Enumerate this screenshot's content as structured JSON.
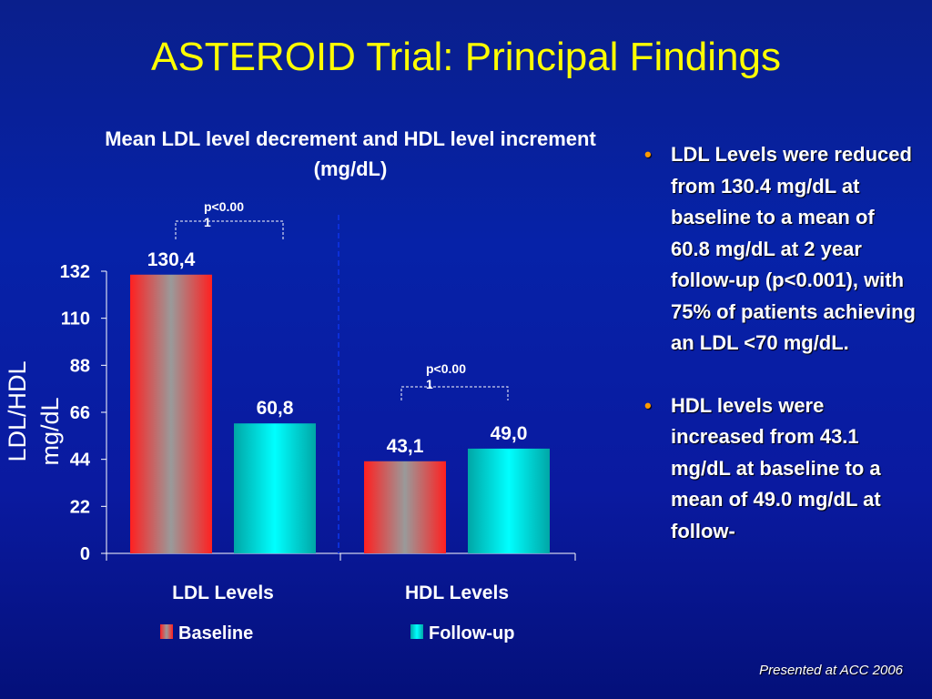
{
  "slide": {
    "title": "ASTEROID Trial: Principal Findings",
    "footer": "Presented at ACC 2006"
  },
  "bullets": [
    "LDL Levels were reduced from 130.4 mg/dL at baseline to a mean of 60.8 mg/dL at 2 year follow-up (p<0.001), with 75% of patients achieving an LDL <70 mg/dL.",
    "HDL levels were increased from 43.1 mg/dL at baseline to a mean of 49.0 mg/dL at follow-"
  ],
  "colors": {
    "background": "#0622a8",
    "title": "#ffff00",
    "baseline_edge": "#ff2020",
    "baseline_center": "#9a9a9a",
    "followup_edge": "#00a6a6",
    "followup_center": "#00ffff",
    "bullet": "#ff9900"
  },
  "chart_data": {
    "type": "bar",
    "title": "Mean LDL level decrement and HDL level increment",
    "subtitle": "(mg/dL)",
    "ylabel": "LDL/HDL mg/dL",
    "xlabel": "",
    "ylim": [
      0,
      132
    ],
    "yticks": [
      "0",
      "22",
      "44",
      "66",
      "88",
      "110",
      "132"
    ],
    "categories": [
      "LDL Levels",
      "HDL Levels"
    ],
    "series": [
      {
        "name": "Baseline",
        "values": [
          130.4,
          43.1
        ],
        "labels": [
          "130,4",
          "43,1"
        ]
      },
      {
        "name": "Follow-up",
        "values": [
          60.8,
          49.0
        ],
        "labels": [
          "60,8",
          "49,0"
        ]
      }
    ],
    "annotations": [
      {
        "category": "LDL Levels",
        "text": "p<0.00",
        "text2": "1"
      },
      {
        "category": "HDL Levels",
        "text": "p<0.00",
        "text2": "1"
      }
    ],
    "legend_position": "bottom",
    "grid": false
  }
}
